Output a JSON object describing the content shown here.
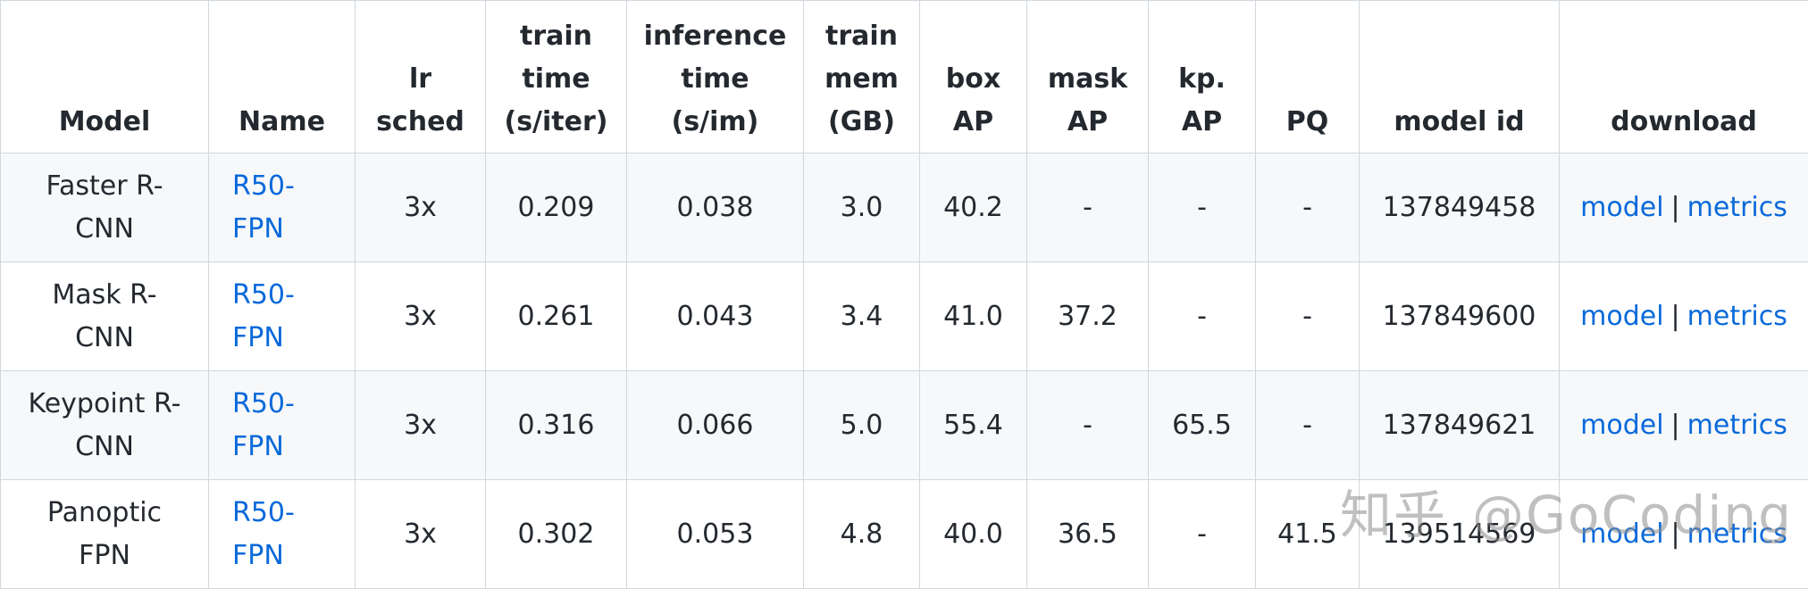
{
  "headers": [
    {
      "lines": [
        "Model"
      ]
    },
    {
      "lines": [
        "Name"
      ]
    },
    {
      "lines": [
        "lr",
        "sched"
      ]
    },
    {
      "lines": [
        "train",
        "time",
        "(s/iter)"
      ]
    },
    {
      "lines": [
        "inference",
        "time",
        "(s/im)"
      ]
    },
    {
      "lines": [
        "train",
        "mem",
        "(GB)"
      ]
    },
    {
      "lines": [
        "box",
        "AP"
      ]
    },
    {
      "lines": [
        "mask",
        "AP"
      ]
    },
    {
      "lines": [
        "kp.",
        "AP"
      ]
    },
    {
      "lines": [
        "PQ"
      ]
    },
    {
      "lines": [
        "model id"
      ]
    },
    {
      "lines": [
        "download"
      ]
    }
  ],
  "rows": [
    {
      "model_lines": [
        "Faster R-",
        "CNN"
      ],
      "name_lines": [
        "R50-",
        "FPN"
      ],
      "lr_sched": "3x",
      "train_time": "0.209",
      "inference_time": "0.038",
      "train_mem": "3.0",
      "box_ap": "40.2",
      "mask_ap": "-",
      "kp_ap": "-",
      "pq": "-",
      "model_id": "137849458",
      "download_model": "model",
      "download_sep": "|",
      "download_metrics": "metrics"
    },
    {
      "model_lines": [
        "Mask R-",
        "CNN"
      ],
      "name_lines": [
        "R50-",
        "FPN"
      ],
      "lr_sched": "3x",
      "train_time": "0.261",
      "inference_time": "0.043",
      "train_mem": "3.4",
      "box_ap": "41.0",
      "mask_ap": "37.2",
      "kp_ap": "-",
      "pq": "-",
      "model_id": "137849600",
      "download_model": "model",
      "download_sep": "|",
      "download_metrics": "metrics"
    },
    {
      "model_lines": [
        "Keypoint R-",
        "CNN"
      ],
      "name_lines": [
        "R50-",
        "FPN"
      ],
      "lr_sched": "3x",
      "train_time": "0.316",
      "inference_time": "0.066",
      "train_mem": "5.0",
      "box_ap": "55.4",
      "mask_ap": "-",
      "kp_ap": "65.5",
      "pq": "-",
      "model_id": "137849621",
      "download_model": "model",
      "download_sep": "|",
      "download_metrics": "metrics"
    },
    {
      "model_lines": [
        "Panoptic",
        "FPN"
      ],
      "name_lines": [
        "R50-",
        "FPN"
      ],
      "lr_sched": "3x",
      "train_time": "0.302",
      "inference_time": "0.053",
      "train_mem": "4.8",
      "box_ap": "40.0",
      "mask_ap": "36.5",
      "kp_ap": "-",
      "pq": "41.5",
      "model_id": "139514569",
      "download_model": "model",
      "download_sep": "|",
      "download_metrics": "metrics"
    }
  ],
  "watermark": {
    "cn": "知乎",
    "handle": "@GoCoding"
  },
  "colors": {
    "link": "#0969da",
    "border": "#d0d7de",
    "stripe": "#f6f8fa",
    "text": "#24292f"
  }
}
